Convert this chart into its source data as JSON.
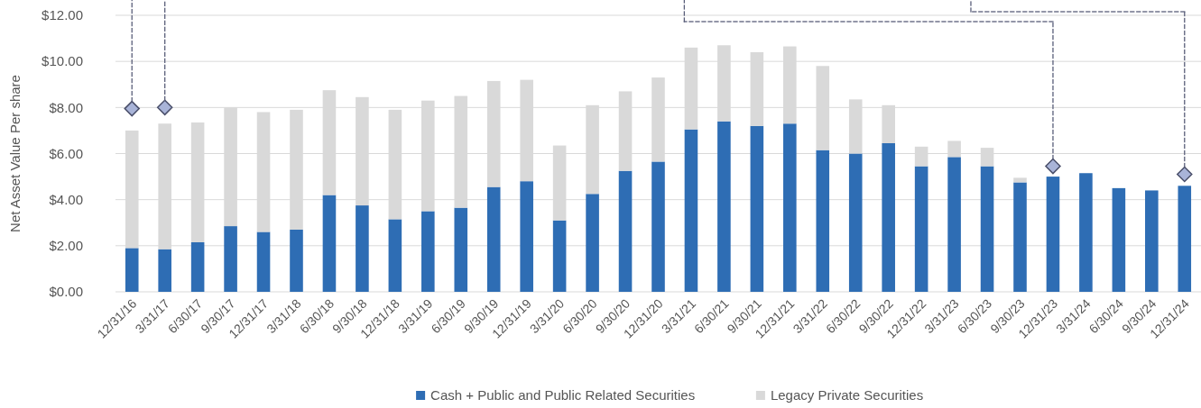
{
  "chart_data": {
    "type": "bar",
    "stacked": true,
    "ylabel": "Net Asset Value Per share",
    "categories": [
      "12/31/16",
      "3/31/17",
      "6/30/17",
      "9/30/17",
      "12/31/17",
      "3/31/18",
      "6/30/18",
      "9/30/18",
      "12/31/18",
      "3/31/19",
      "6/30/19",
      "9/30/19",
      "12/31/19",
      "3/31/20",
      "6/30/20",
      "9/30/20",
      "12/31/20",
      "3/31/21",
      "6/30/21",
      "9/30/21",
      "12/31/21",
      "3/31/22",
      "6/30/22",
      "9/30/22",
      "12/31/22",
      "3/31/23",
      "6/30/23",
      "9/30/23",
      "12/31/23",
      "3/31/24",
      "6/30/24",
      "9/30/24",
      "12/31/24"
    ],
    "series": [
      {
        "name": "Cash + Public and Public Related Securities",
        "color": "#2e6db4",
        "values": [
          1.9,
          1.85,
          2.15,
          2.85,
          2.6,
          2.7,
          4.2,
          3.75,
          3.15,
          3.5,
          3.65,
          4.55,
          4.8,
          3.1,
          4.25,
          5.25,
          5.65,
          7.05,
          7.4,
          7.2,
          7.3,
          6.15,
          6.0,
          6.45,
          5.45,
          5.85,
          5.45,
          4.75,
          5.0,
          5.15,
          4.5,
          4.4,
          4.6
        ]
      },
      {
        "name": "Legacy Private Securities",
        "color": "#d9d9d9",
        "values": [
          5.1,
          5.45,
          5.2,
          5.15,
          5.2,
          5.2,
          4.55,
          4.7,
          4.75,
          4.8,
          4.85,
          4.6,
          4.4,
          3.25,
          3.85,
          3.45,
          3.65,
          3.55,
          3.3,
          3.2,
          3.35,
          3.65,
          2.35,
          1.65,
          0.85,
          0.7,
          0.8,
          0.2,
          null,
          null,
          null,
          null,
          null
        ]
      },
      {
        "type": "scatter",
        "marker": "diamond",
        "color": "#a9b4d8",
        "x": [
          "12/31/16",
          "3/31/17",
          "12/31/23",
          "12/31/24"
        ],
        "values": [
          7.95,
          8.0,
          5.45,
          5.1
        ]
      }
    ],
    "ylim": [
      0,
      12
    ],
    "yticks": [
      {
        "value": 0,
        "label": "$0.00"
      },
      {
        "value": 2,
        "label": "$2.00"
      },
      {
        "value": 4,
        "label": "$4.00"
      },
      {
        "value": 6,
        "label": "$6.00"
      },
      {
        "value": 8,
        "label": "$8.00"
      },
      {
        "value": 10,
        "label": "$10.00"
      },
      {
        "value": 12,
        "label": "$12.00"
      }
    ],
    "grid": "y",
    "legend": "bottom"
  }
}
